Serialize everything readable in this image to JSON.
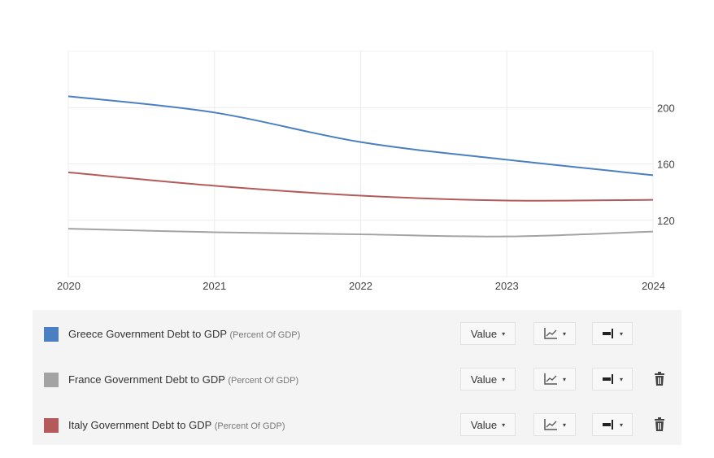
{
  "chart_data": {
    "type": "line",
    "x": [
      2020,
      2021,
      2022,
      2023,
      2024
    ],
    "xticks": [
      "2020",
      "2021",
      "2022",
      "2023",
      "2024"
    ],
    "yticks": [
      "120",
      "160",
      "200"
    ],
    "ytick_values": [
      120,
      160,
      200
    ],
    "ylim": [
      80,
      240
    ],
    "grid": true,
    "series": [
      {
        "name": "Greece Government Debt to GDP",
        "unit": "(Percent Of GDP)",
        "color": "#4a7fc1",
        "values": [
          208,
          196.5,
          175.5,
          163,
          152
        ]
      },
      {
        "name": "France Government Debt to GDP",
        "unit": "(Percent Of GDP)",
        "color": "#a3a3a3",
        "values": [
          114,
          111.5,
          110,
          108.5,
          112
        ]
      },
      {
        "name": "Italy Government Debt to GDP",
        "unit": "(Percent Of GDP)",
        "color": "#b55a5a",
        "values": [
          154,
          144.5,
          137.5,
          134,
          134.5
        ]
      }
    ]
  },
  "controls": {
    "value_label": "Value",
    "caret": "▾",
    "deletable": [
      false,
      true,
      true
    ]
  }
}
